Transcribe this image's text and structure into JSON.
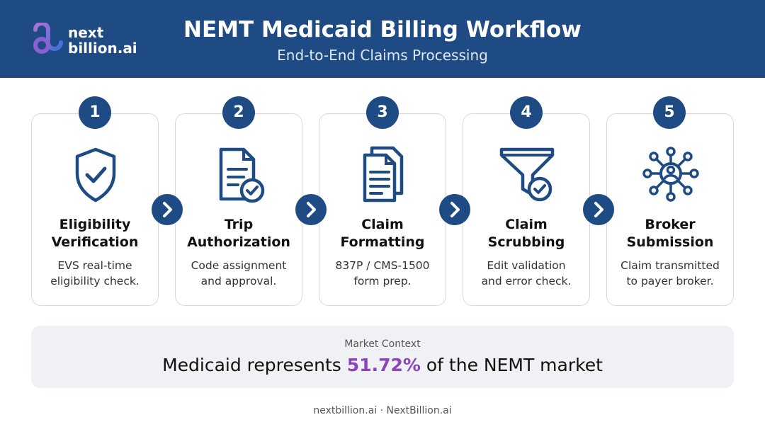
{
  "header": {
    "logo": {
      "line1": "next",
      "line2": "billion.ai"
    },
    "title": "NEMT Medicaid Billing Workflow",
    "subtitle": "End-to-End Claims Processing"
  },
  "steps": [
    {
      "number": "1",
      "title_line1": "Eligibility",
      "title_line2": "Verification",
      "desc_line1": "EVS real-time",
      "desc_line2": "eligibility check.",
      "icon": "shield-check-icon"
    },
    {
      "number": "2",
      "title_line1": "Trip",
      "title_line2": "Authorization",
      "desc_line1": "Code assignment",
      "desc_line2": "and approval.",
      "icon": "document-check-icon"
    },
    {
      "number": "3",
      "title_line1": "Claim",
      "title_line2": "Formatting",
      "desc_line1": "837P / CMS-1500",
      "desc_line2": "form prep.",
      "icon": "documents-icon"
    },
    {
      "number": "4",
      "title_line1": "Claim",
      "title_line2": "Scrubbing",
      "desc_line1": "Edit validation",
      "desc_line2": "and error check.",
      "icon": "funnel-check-icon"
    },
    {
      "number": "5",
      "title_line1": "Broker",
      "title_line2": "Submission",
      "desc_line1": "Claim transmitted",
      "desc_line2": "to payer broker.",
      "icon": "network-user-icon"
    }
  ],
  "market": {
    "label": "Market Context",
    "text_before": "Medicaid represents ",
    "highlight": "51.72%",
    "text_after": " of the NEMT market"
  },
  "footer": "nextbillion.ai · NextBillion.ai",
  "colors": {
    "primary": "#1f4b84",
    "accent": "#8c45b8",
    "card_border": "#d5d9de",
    "market_bg": "#eff1f4"
  }
}
